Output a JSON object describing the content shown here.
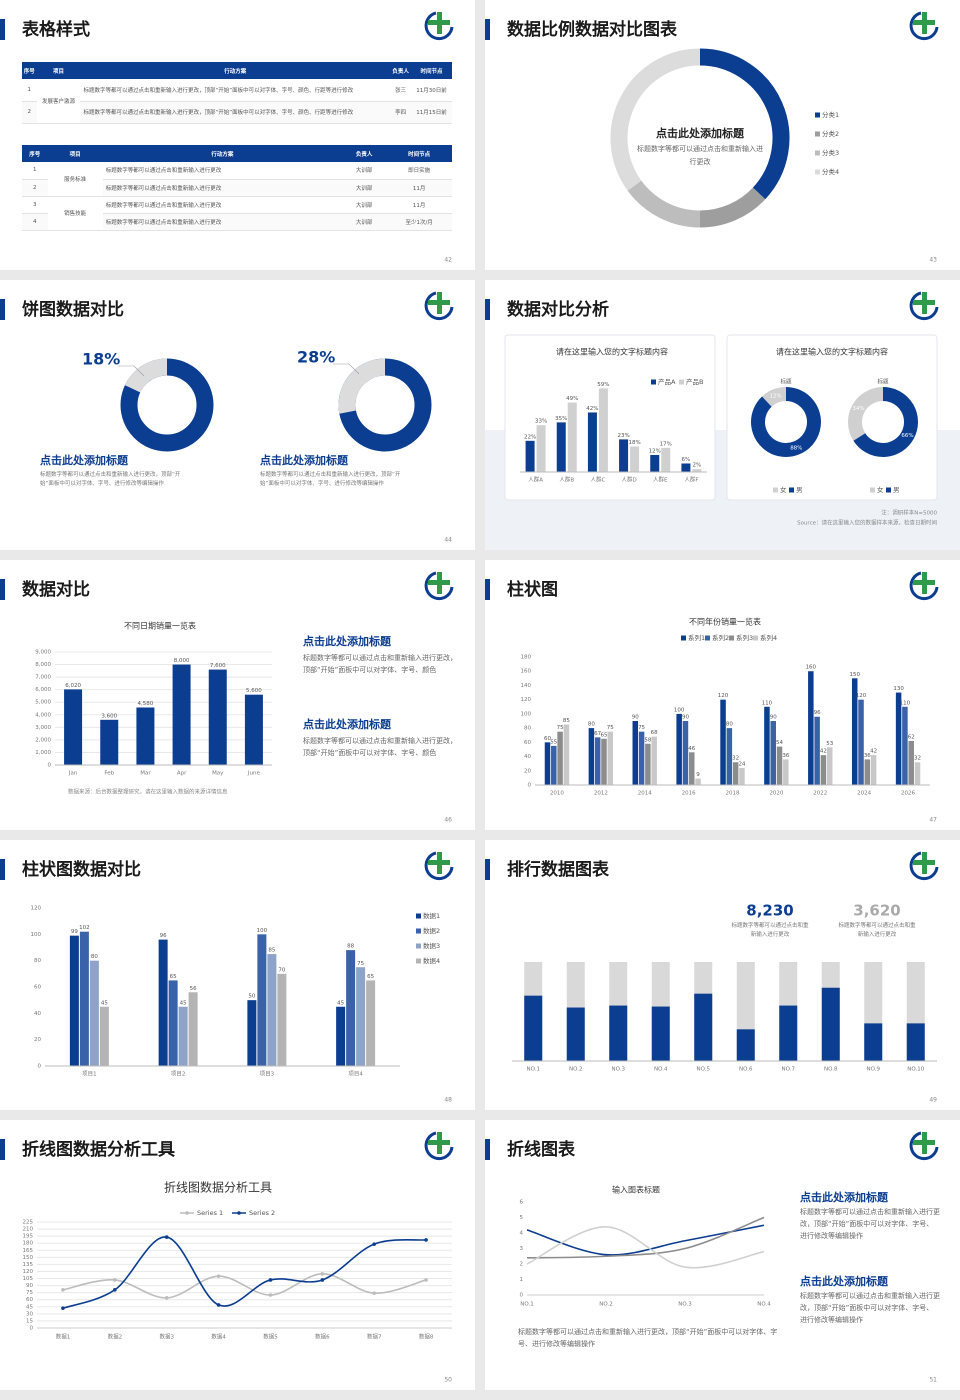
{
  "slides": [
    {
      "title": "表格样式",
      "page": "42",
      "tables": [
        {
          "header": [
            "序号",
            "项目",
            "行动方案",
            "负责人",
            "时间节点"
          ],
          "groups": [
            {
              "label": "发展客户激源",
              "rows": [
                [
                  "1",
                  "标题数字等都可以通过点击和重新输入进行更改，顶部“开始”面板中可以对字体、字号、颜色、行距等进行修改",
                  "张三",
                  "11月30日前"
                ],
                [
                  "2",
                  "标题数字等都可以通过点击和重新输入进行更改，顶部“开始”面板中可以对字体、字号、颜色、行距等进行修改",
                  "李四",
                  "11月15日前"
                ]
              ]
            }
          ]
        },
        {
          "header": [
            "序号",
            "项目",
            "行动方案",
            "负责人",
            "时间节点"
          ],
          "groups": [
            {
              "label": "服务标准",
              "rows": [
                [
                  "1",
                  "标题数字等都可以通过点击和重新输入进行更改",
                  "大训部",
                  "即日实施"
                ],
                [
                  "2",
                  "标题数字等都可以通过点击和重新输入进行更改",
                  "大训部",
                  "11月"
                ]
              ]
            },
            {
              "label": "销售技能",
              "rows": [
                [
                  "3",
                  "标题数字等都可以通过点击和重新输入进行更改",
                  "大训部",
                  "11月"
                ],
                [
                  "4",
                  "标题数字等都可以通过点击和重新输入进行更改",
                  "大训部",
                  "至少1次/月"
                ]
              ]
            }
          ]
        }
      ]
    },
    {
      "title": "数据比例数据对比图表",
      "page": "43",
      "center_title": "点击此处添加标题",
      "center_text": "标题数字等都可以通过点击和重新输入进行更改"
    },
    {
      "title": "饼图数据对比",
      "page": "44",
      "items": [
        {
          "title": "点击此处添加标题",
          "text": "标题数字等都可以通过点击和重新输入进行更改，顶部“开始”面板中可以对字体、字号、进行修改等编辑操作"
        },
        {
          "title": "点击此处添加标题",
          "text": "标题数字等都可以通过点击和重新输入进行更改，顶部“开始”面板中可以对字体、字号、进行修改等编辑操作"
        }
      ]
    },
    {
      "title": "数据对比分析",
      "page": "45",
      "right_title": "请在这里输入您的文字标题内容",
      "note": "注：调研样本N=5000",
      "source": "Source：请在这里输入您的数据样本来源，检查日期时间"
    },
    {
      "title": "数据对比",
      "page": "46",
      "source": "数据来源：后台数据整理研究，请在这里输入数据的来源详情信息",
      "items": [
        {
          "title": "点击此处添加标题",
          "text": "标题数字等都可以通过点击和重新输入进行更改，顶部“开始”面板中可以对字体、字号、颜色"
        },
        {
          "title": "点击此处添加标题",
          "text": "标题数字等都可以通过点击和重新输入进行更改，顶部“开始”面板中可以对字体、字号、颜色"
        }
      ]
    },
    {
      "title": "柱状图",
      "page": "47"
    },
    {
      "title": "柱状图数据对比",
      "page": "48"
    },
    {
      "title": "排行数据图表",
      "page": "49",
      "stats": [
        {
          "value": "8,230",
          "text": "标题数字等都可以通过点击和重新输入进行更改"
        },
        {
          "value": "3,620",
          "text": "标题数字等都可以通过点击和重新输入进行更改"
        }
      ]
    },
    {
      "title": "折线图数据分析工具",
      "page": "50"
    },
    {
      "title": "折线图表",
      "page": "51",
      "items": [
        {
          "title": "点击此处添加标题",
          "text": "标题数字等都可以通过点击和重新输入进行更改，顶部“开始”面板中可以对字体、字号、进行修改等编辑操作"
        },
        {
          "title": "点击此处添加标题",
          "text": "标题数字等都可以通过点击和重新输入进行更改，顶部“开始”面板中可以对字体、字号、进行修改等编辑操作"
        }
      ],
      "footer": "标题数字等都可以通过点击和重新输入进行更改，顶部“开始”面板中可以对字体、字号、进行修改等编辑操作"
    }
  ],
  "chart_data": [
    {
      "type": "donut",
      "categories": [
        "分类1",
        "分类2",
        "分类3",
        "分类4"
      ],
      "values": [
        37,
        13,
        15,
        35
      ],
      "colors": [
        "#0b3d91",
        "#9e9e9e",
        "#bdbdbd",
        "#dcdcdc"
      ]
    },
    {
      "type": "donut",
      "values": [
        18
      ],
      "value_labels": [
        "18%"
      ],
      "color": "#dcdcdc",
      "track_color": "#0b3d91"
    },
    {
      "type": "donut",
      "values": [
        28
      ],
      "value_labels": [
        "28%"
      ],
      "color": "#dcdcdc",
      "track_color": "#0b3d91"
    },
    {
      "type": "bar",
      "title": "请在这里输入您的文字标题内容",
      "categories": [
        "人群A",
        "人群B",
        "人群C",
        "人群D",
        "人群E",
        "人群F"
      ],
      "data_labels": true,
      "series": [
        {
          "name": "产品A",
          "color": "#0b3d91",
          "values": [
            22,
            35,
            42,
            23,
            12,
            6
          ],
          "value_labels": [
            "22%",
            "35%",
            "42%",
            "23%",
            "12%",
            "6%"
          ]
        },
        {
          "name": "产品B",
          "color": "#d0d0d0",
          "values": [
            33,
            49,
            59,
            18,
            17,
            2
          ],
          "value_labels": [
            "33%",
            "49%",
            "59%",
            "18%",
            "17%",
            "2%"
          ]
        }
      ]
    },
    {
      "type": "donut",
      "title": "标题",
      "categories": [
        "女",
        "男"
      ],
      "values": [
        12,
        88
      ],
      "value_labels": [
        "12%",
        "88%"
      ],
      "colors": [
        "#d0d0d0",
        "#0b3d91"
      ]
    },
    {
      "type": "donut",
      "title": "标题",
      "categories": [
        "女",
        "男"
      ],
      "values": [
        34,
        66
      ],
      "value_labels": [
        "34%",
        "66%"
      ],
      "colors": [
        "#d0d0d0",
        "#0b3d91"
      ]
    },
    {
      "type": "bar",
      "title": "不同日期销量一览表",
      "categories": [
        "Jan",
        "Feb",
        "Mar",
        "Apr",
        "May",
        "June"
      ],
      "values": [
        6020,
        3600,
        4580,
        8000,
        7600,
        5600
      ],
      "value_labels": [
        "6,020",
        "3,600",
        "4,580",
        "8,000",
        "7,600",
        "5,600"
      ],
      "color": "#0b3d91",
      "ylim": [
        0,
        9000
      ],
      "yticks": [
        0,
        {
          "value": 1000,
          "label": "1,000"
        },
        {
          "value": 2000,
          "label": "2,000"
        },
        {
          "value": 3000,
          "label": "3,000"
        },
        {
          "value": 4000,
          "label": "4,000"
        },
        {
          "value": 5000,
          "label": "5,000"
        },
        {
          "value": 6000,
          "label": "6,000"
        },
        {
          "value": 7000,
          "label": "7,000"
        },
        {
          "value": 8000,
          "label": "8,000"
        },
        {
          "value": 9000,
          "label": "9,000"
        }
      ],
      "grid": true,
      "data_labels": true
    },
    {
      "type": "bar",
      "title": "不同年份销量一览表",
      "categories": [
        "2010",
        "2012",
        "2014",
        "2016",
        "2018",
        "2020",
        "2022",
        "2024",
        "2026"
      ],
      "ylim": [
        0,
        180
      ],
      "yticks": [
        0,
        20,
        40,
        60,
        80,
        100,
        120,
        140,
        160,
        180
      ],
      "grid": false,
      "data_labels": true,
      "series": [
        {
          "name": "系列1",
          "color": "#0b3d91",
          "values": [
            60,
            80,
            90,
            100,
            120,
            110,
            160,
            150,
            130
          ]
        },
        {
          "name": "系列2",
          "color": "#3a62a8",
          "values": [
            55,
            67,
            75,
            90,
            80,
            90,
            96,
            120,
            110
          ]
        },
        {
          "name": "系列3",
          "color": "#8c8c8c",
          "values": [
            75,
            65,
            58,
            46,
            32,
            54,
            42,
            36,
            62
          ]
        },
        {
          "name": "系列4",
          "color": "#c8c8c8",
          "values": [
            85,
            75,
            68,
            9,
            24,
            36,
            53,
            42,
            32
          ]
        }
      ]
    },
    {
      "type": "bar",
      "categories": [
        "项目1",
        "项目2",
        "项目3",
        "项目4"
      ],
      "ylim": [
        0,
        120
      ],
      "yticks": [
        0,
        20,
        40,
        60,
        80,
        100,
        120
      ],
      "grid": false,
      "data_labels": true,
      "series": [
        {
          "name": "数据1",
          "color": "#0b3d91",
          "values": [
            99,
            96,
            50,
            45
          ]
        },
        {
          "name": "数据2",
          "color": "#3a62a8",
          "values": [
            102,
            65,
            100,
            88
          ]
        },
        {
          "name": "数据3",
          "color": "#8ea3c8",
          "values": [
            80,
            45,
            85,
            75
          ]
        },
        {
          "name": "数据4",
          "color": "#b4b4b4",
          "values": [
            45,
            56,
            70,
            65
          ]
        }
      ]
    },
    {
      "type": "bar",
      "categories": [
        "NO.1",
        "NO.2",
        "NO.3",
        "NO.4",
        "NO.5",
        "NO.6",
        "NO.7",
        "NO.8",
        "NO.9",
        "NO.10"
      ],
      "values": [
        66,
        54,
        56,
        55,
        68,
        32,
        56,
        74,
        38,
        38
      ],
      "color": "#0b3d91",
      "track_color": "#d9d9d9",
      "ylim": [
        0,
        100
      ]
    },
    {
      "type": "line",
      "title": "折线图数据分析工具",
      "categories": [
        "数据1",
        "数据2",
        "数据3",
        "数据4",
        "数据5",
        "数据6",
        "数据7",
        "数据8"
      ],
      "ylim": [
        0,
        225
      ],
      "yticks": [
        0,
        15,
        30,
        45,
        60,
        75,
        90,
        105,
        120,
        135,
        150,
        165,
        180,
        195,
        210,
        225
      ],
      "grid": true,
      "markers": true,
      "series": [
        {
          "name": "Series 1",
          "color": "#bdbdbd",
          "values": [
            81,
            102,
            64,
            110,
            70,
            115,
            74,
            102
          ]
        },
        {
          "name": "Series 2",
          "color": "#0b3d91",
          "values": [
            42,
            81,
            193,
            49,
            102,
            102,
            178,
            187
          ]
        }
      ]
    },
    {
      "type": "line",
      "title": "输入图表标题",
      "categories": [
        "NO.1",
        "NO.2",
        "NO.3",
        "NO.4"
      ],
      "ylim": [
        0,
        6
      ],
      "yticks": [
        0,
        1,
        2,
        3,
        4,
        5,
        6
      ],
      "grid": false,
      "series": [
        {
          "color": "#0b3d91",
          "values": [
            4.2,
            2.6,
            3.5,
            4.5
          ]
        },
        {
          "color": "#8c8c8c",
          "values": [
            2.4,
            2.5,
            3,
            5
          ]
        },
        {
          "color": "#d0d0d0",
          "values": [
            2,
            4.4,
            1.8,
            2.8
          ]
        }
      ]
    }
  ]
}
